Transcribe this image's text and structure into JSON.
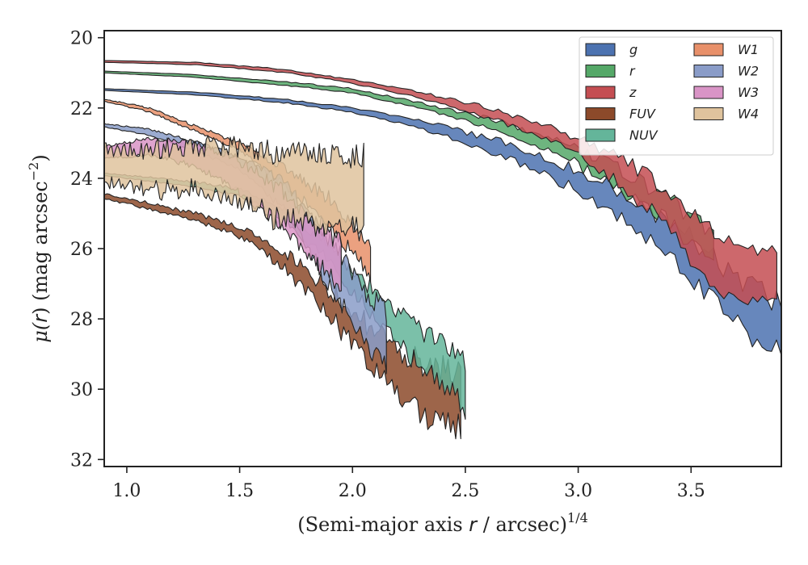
{
  "chart_data": {
    "type": "area",
    "xlabel_main": "(Semi-major axis ",
    "xlabel_var": "r",
    "xlabel_unit": " / arcsec)",
    "xlabel_exp": "1/4",
    "ylabel_main": "μ(",
    "ylabel_var": "r",
    "ylabel_unit": ") (mag arcsec",
    "ylabel_exp": "−2",
    "ylabel_close": ")",
    "xlim": [
      0.9,
      3.9
    ],
    "ylim": [
      32.2,
      19.8
    ],
    "y_inverted": true,
    "grid": false,
    "legend_position": "top-right",
    "x_ticks": [
      "1.0",
      "1.5",
      "2.0",
      "2.5",
      "3.0",
      "3.5"
    ],
    "x_tick_values": [
      1.0,
      1.5,
      2.0,
      2.5,
      3.0,
      3.5
    ],
    "y_ticks": [
      "20",
      "22",
      "24",
      "26",
      "28",
      "30",
      "32"
    ],
    "y_tick_values": [
      20,
      22,
      24,
      26,
      28,
      30,
      32
    ],
    "series": [
      {
        "name": "g",
        "color": "#4c72b0",
        "x_start": 0.9,
        "x_end": 3.9,
        "x_noise": 3.0,
        "upper": [
          [
            0.9,
            21.45
          ],
          [
            1.3,
            21.55
          ],
          [
            1.7,
            21.75
          ],
          [
            2.0,
            22.0
          ],
          [
            2.3,
            22.35
          ],
          [
            2.6,
            22.85
          ],
          [
            2.9,
            23.5
          ],
          [
            3.2,
            24.4
          ],
          [
            3.5,
            25.7
          ],
          [
            3.7,
            26.8
          ],
          [
            3.9,
            27.4
          ]
        ],
        "width": [
          [
            0.9,
            0.05
          ],
          [
            2.0,
            0.1
          ],
          [
            2.5,
            0.25
          ],
          [
            3.0,
            0.4
          ],
          [
            3.5,
            0.8
          ],
          [
            3.9,
            1.2
          ]
        ],
        "noise": [
          [
            0.9,
            0.0
          ],
          [
            2.2,
            0.05
          ],
          [
            2.8,
            0.25
          ],
          [
            3.4,
            0.5
          ],
          [
            3.9,
            0.9
          ]
        ]
      },
      {
        "name": "r",
        "color": "#55a868",
        "x_start": 0.9,
        "x_end": 3.6,
        "x_noise": 3.0,
        "upper": [
          [
            0.9,
            20.95
          ],
          [
            1.3,
            21.05
          ],
          [
            1.7,
            21.25
          ],
          [
            2.0,
            21.45
          ],
          [
            2.3,
            21.85
          ],
          [
            2.6,
            22.3
          ],
          [
            2.9,
            22.9
          ],
          [
            3.2,
            23.8
          ],
          [
            3.4,
            24.6
          ],
          [
            3.6,
            25.6
          ]
        ],
        "width": [
          [
            0.9,
            0.05
          ],
          [
            2.0,
            0.1
          ],
          [
            2.5,
            0.15
          ],
          [
            3.0,
            0.3
          ],
          [
            3.6,
            0.5
          ]
        ],
        "noise": [
          [
            0.9,
            0.0
          ],
          [
            2.3,
            0.05
          ],
          [
            2.9,
            0.2
          ],
          [
            3.3,
            0.4
          ],
          [
            3.6,
            0.5
          ]
        ]
      },
      {
        "name": "z",
        "color": "#c44e52",
        "x_start": 0.9,
        "x_end": 3.88,
        "x_noise": 3.0,
        "upper": [
          [
            0.9,
            20.65
          ],
          [
            1.3,
            20.7
          ],
          [
            1.7,
            20.9
          ],
          [
            2.0,
            21.2
          ],
          [
            2.3,
            21.55
          ],
          [
            2.6,
            22.0
          ],
          [
            2.9,
            22.6
          ],
          [
            3.2,
            23.5
          ],
          [
            3.4,
            24.4
          ],
          [
            3.6,
            25.5
          ],
          [
            3.75,
            26.0
          ],
          [
            3.88,
            26.0
          ]
        ],
        "width": [
          [
            0.9,
            0.05
          ],
          [
            2.0,
            0.08
          ],
          [
            2.6,
            0.2
          ],
          [
            3.0,
            0.3
          ],
          [
            3.4,
            0.8
          ],
          [
            3.6,
            1.5
          ],
          [
            3.88,
            1.2
          ]
        ],
        "noise": [
          [
            0.9,
            0.0
          ],
          [
            2.3,
            0.05
          ],
          [
            2.9,
            0.2
          ],
          [
            3.3,
            0.5
          ],
          [
            3.6,
            0.4
          ],
          [
            3.88,
            0.3
          ]
        ]
      },
      {
        "name": "FUV",
        "color": "#8c4a2a",
        "x_start": 0.9,
        "x_end": 2.48,
        "x_noise": 1.2,
        "upper": [
          [
            0.9,
            24.45
          ],
          [
            1.1,
            24.7
          ],
          [
            1.3,
            25.0
          ],
          [
            1.5,
            25.4
          ],
          [
            1.7,
            26.1
          ],
          [
            1.9,
            27.2
          ],
          [
            2.1,
            28.4
          ],
          [
            2.3,
            29.3
          ],
          [
            2.48,
            29.5
          ]
        ],
        "width": [
          [
            0.9,
            0.1
          ],
          [
            1.6,
            0.2
          ],
          [
            2.0,
            0.6
          ],
          [
            2.3,
            1.0
          ],
          [
            2.48,
            1.3
          ]
        ],
        "noise": [
          [
            0.9,
            0.05
          ],
          [
            1.5,
            0.15
          ],
          [
            1.9,
            0.5
          ],
          [
            2.2,
            0.7
          ],
          [
            2.48,
            0.8
          ]
        ]
      },
      {
        "name": "NUV",
        "color": "#64b59a",
        "x_start": 0.9,
        "x_end": 2.5,
        "x_noise": 1.6,
        "upper": [
          [
            0.9,
            23.85
          ],
          [
            1.3,
            24.1
          ],
          [
            1.5,
            24.3
          ],
          [
            1.7,
            24.9
          ],
          [
            1.9,
            25.9
          ],
          [
            2.1,
            27.3
          ],
          [
            2.3,
            28.3
          ],
          [
            2.5,
            29.2
          ]
        ],
        "width": [
          [
            0.9,
            0.06
          ],
          [
            1.6,
            0.15
          ],
          [
            2.0,
            0.4
          ],
          [
            2.3,
            0.8
          ],
          [
            2.5,
            1.0
          ]
        ],
        "noise": [
          [
            0.9,
            0.02
          ],
          [
            1.6,
            0.1
          ],
          [
            1.9,
            0.4
          ],
          [
            2.2,
            0.6
          ],
          [
            2.5,
            0.6
          ]
        ]
      },
      {
        "name": "W1",
        "color": "#e8906a",
        "x_start": 0.9,
        "x_end": 2.08,
        "x_noise": 1.6,
        "upper": [
          [
            0.9,
            21.75
          ],
          [
            1.1,
            22.0
          ],
          [
            1.3,
            22.5
          ],
          [
            1.5,
            23.0
          ],
          [
            1.7,
            23.7
          ],
          [
            1.9,
            24.6
          ],
          [
            2.08,
            26.0
          ]
        ],
        "width": [
          [
            0.9,
            0.05
          ],
          [
            1.5,
            0.15
          ],
          [
            1.9,
            0.5
          ],
          [
            2.08,
            0.6
          ]
        ],
        "noise": [
          [
            0.9,
            0.02
          ],
          [
            1.5,
            0.1
          ],
          [
            1.9,
            0.4
          ],
          [
            2.08,
            0.4
          ]
        ]
      },
      {
        "name": "W2",
        "color": "#8a9cc8",
        "x_start": 0.9,
        "x_end": 2.15,
        "x_noise": 1.6,
        "upper": [
          [
            0.9,
            22.45
          ],
          [
            1.1,
            22.6
          ],
          [
            1.3,
            22.95
          ],
          [
            1.5,
            23.4
          ],
          [
            1.7,
            24.1
          ],
          [
            1.9,
            25.8
          ],
          [
            2.05,
            27.2
          ],
          [
            2.15,
            27.8
          ]
        ],
        "width": [
          [
            0.9,
            0.08
          ],
          [
            1.5,
            0.3
          ],
          [
            1.9,
            1.0
          ],
          [
            2.15,
            1.3
          ]
        ],
        "noise": [
          [
            0.9,
            0.02
          ],
          [
            1.5,
            0.1
          ],
          [
            1.9,
            0.5
          ],
          [
            2.15,
            0.5
          ]
        ]
      },
      {
        "name": "W3",
        "color": "#d994c6",
        "x_start": 0.9,
        "x_end": 1.95,
        "x_noise": 2.0,
        "upper": [
          [
            0.9,
            23.1
          ],
          [
            1.1,
            22.85
          ],
          [
            1.3,
            23.0
          ],
          [
            1.5,
            23.5
          ],
          [
            1.7,
            24.4
          ],
          [
            1.85,
            25.3
          ],
          [
            1.95,
            25.9
          ]
        ],
        "width": [
          [
            0.9,
            0.3
          ],
          [
            1.2,
            0.5
          ],
          [
            1.6,
            0.8
          ],
          [
            1.95,
            1.0
          ]
        ],
        "noise": [
          [
            0.9,
            0.05
          ],
          [
            1.3,
            0.15
          ],
          [
            1.7,
            0.4
          ],
          [
            1.95,
            0.5
          ]
        ]
      },
      {
        "name": "W4",
        "color": "#dfc39d",
        "x_start": 0.9,
        "x_end": 2.05,
        "x_noise": 3.5,
        "upper": [
          [
            0.9,
            23.15
          ],
          [
            1.1,
            23.2
          ],
          [
            1.3,
            23.05
          ],
          [
            1.5,
            23.15
          ],
          [
            1.7,
            23.3
          ],
          [
            1.9,
            23.35
          ],
          [
            2.05,
            23.35
          ]
        ],
        "width": [
          [
            0.9,
            0.8
          ],
          [
            1.3,
            1.0
          ],
          [
            1.7,
            1.6
          ],
          [
            2.05,
            1.8
          ]
        ],
        "noise": [
          [
            0.9,
            0.4
          ],
          [
            1.2,
            0.5
          ],
          [
            1.6,
            0.6
          ],
          [
            2.05,
            0.6
          ]
        ]
      }
    ]
  }
}
